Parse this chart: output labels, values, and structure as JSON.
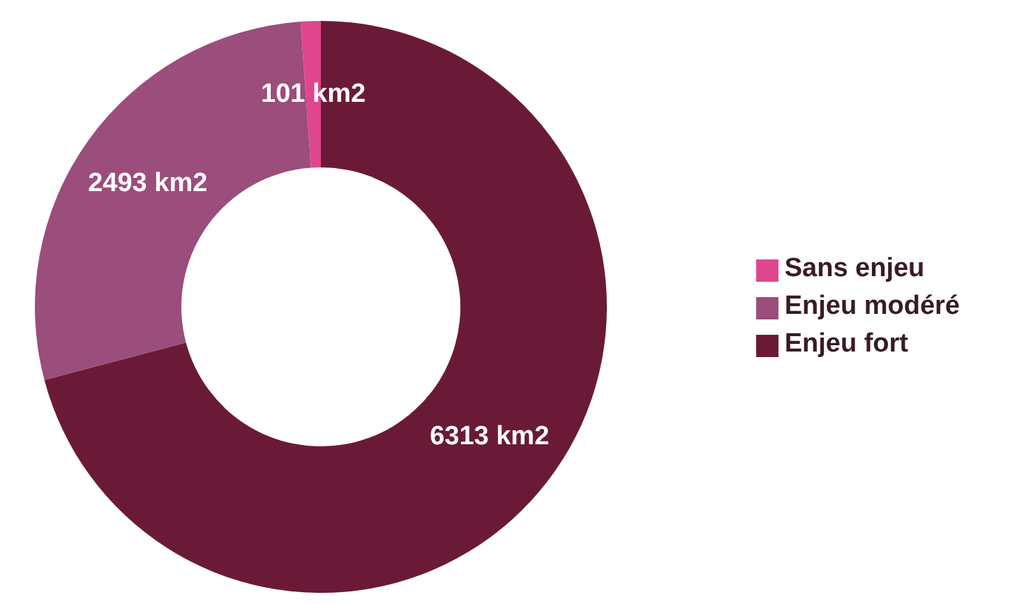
{
  "chart_data": {
    "type": "donut",
    "categories": [
      "Sans enjeu",
      "Enjeu modéré",
      "Enjeu fort"
    ],
    "values": [
      101,
      2493,
      6313
    ],
    "colors": [
      "#e0468e",
      "#9b4d7c",
      "#6a1a37"
    ],
    "value_labels": [
      "101 km2",
      "2493 km2",
      "6313 km2"
    ],
    "legend": "right"
  }
}
